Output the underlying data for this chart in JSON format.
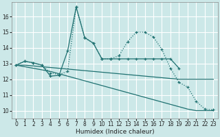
{
  "xlabel": "Humidex (Indice chaleur)",
  "background_color": "#cce8e8",
  "grid_color": "#ffffff",
  "line_color": "#1e7070",
  "xlim": [
    -0.5,
    23.5
  ],
  "ylim": [
    9.5,
    16.9
  ],
  "yticks": [
    10,
    11,
    12,
    13,
    14,
    15,
    16
  ],
  "xticks": [
    0,
    1,
    2,
    3,
    4,
    5,
    6,
    7,
    8,
    9,
    10,
    11,
    12,
    13,
    14,
    15,
    16,
    17,
    18,
    19,
    20,
    21,
    22,
    23
  ],
  "lines": [
    {
      "x": [
        0,
        1,
        2,
        3,
        4,
        5,
        6,
        7,
        8,
        9,
        10,
        11,
        12,
        13,
        14,
        15,
        16,
        17,
        18,
        19
      ],
      "y": [
        12.9,
        13.15,
        13.05,
        12.9,
        12.2,
        12.25,
        13.8,
        16.6,
        14.65,
        14.3,
        13.3,
        13.3,
        13.3,
        13.3,
        13.3,
        13.3,
        13.3,
        13.3,
        13.3,
        12.7
      ],
      "linestyle": "-",
      "marker": "+"
    },
    {
      "x": [
        0,
        1,
        2,
        3,
        4,
        5,
        6,
        7,
        8,
        9,
        10,
        11,
        12,
        13,
        14,
        15,
        16,
        17,
        18,
        19,
        20,
        21,
        22,
        23
      ],
      "y": [
        12.9,
        13.15,
        13.05,
        12.9,
        12.4,
        12.3,
        12.5,
        16.6,
        14.65,
        14.3,
        13.3,
        13.3,
        13.5,
        14.4,
        15.0,
        15.0,
        14.7,
        13.9,
        12.7,
        11.8,
        11.5,
        10.6,
        10.1,
        10.05
      ],
      "linestyle": ":",
      "marker": "+"
    },
    {
      "x": [
        0,
        1,
        2,
        3,
        4,
        5,
        6,
        7,
        8,
        9,
        10,
        11,
        12,
        13,
        14,
        15,
        16,
        17,
        18,
        19,
        20,
        21,
        22,
        23
      ],
      "y": [
        12.9,
        12.8,
        12.7,
        12.6,
        12.5,
        12.35,
        12.2,
        12.05,
        11.9,
        11.75,
        11.6,
        11.45,
        11.3,
        11.15,
        11.0,
        10.85,
        10.7,
        10.55,
        10.4,
        10.25,
        10.1,
        10.0,
        10.0,
        10.0
      ],
      "linestyle": "-",
      "marker": null
    },
    {
      "x": [
        0,
        1,
        2,
        3,
        4,
        5,
        6,
        7,
        8,
        9,
        10,
        11,
        12,
        13,
        14,
        15,
        16,
        17,
        18,
        19,
        20,
        21,
        22,
        23
      ],
      "y": [
        12.9,
        12.9,
        12.85,
        12.8,
        12.75,
        12.7,
        12.65,
        12.6,
        12.55,
        12.5,
        12.45,
        12.4,
        12.35,
        12.3,
        12.25,
        12.2,
        12.15,
        12.1,
        12.05,
        12.0,
        12.0,
        12.0,
        12.0,
        12.0
      ],
      "linestyle": "-",
      "marker": null
    }
  ]
}
